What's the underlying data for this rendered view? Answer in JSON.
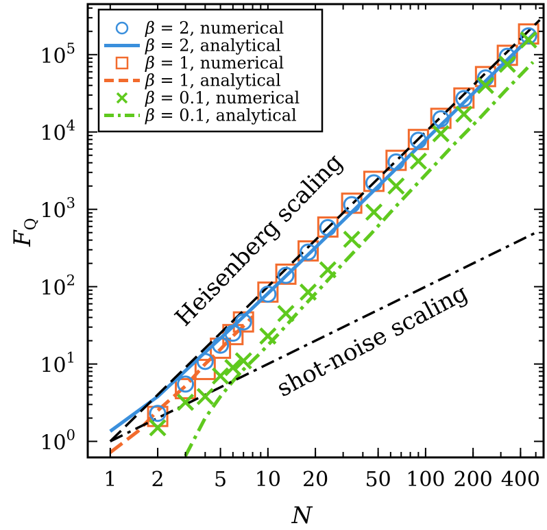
{
  "chart_data": {
    "type": "line",
    "xscale": "log",
    "yscale": "log",
    "xlabel": "N",
    "ylabel": "F_Q",
    "ylabel_main": "F",
    "ylabel_sub": "Q",
    "xlim": [
      0.72,
      560
    ],
    "ylim": [
      0.62,
      450000
    ],
    "x_ticks": [
      1,
      2,
      5,
      10,
      20,
      50,
      100,
      200,
      400
    ],
    "x_tick_labels": [
      "1",
      "2",
      "5",
      "10",
      "20",
      "50",
      "100",
      "200",
      "400"
    ],
    "y_ticks": [
      1,
      10,
      100,
      1000,
      10000,
      100000
    ],
    "y_tick_base": "10",
    "y_tick_exps": [
      "0",
      "1",
      "2",
      "3",
      "4",
      "5"
    ],
    "legend": {
      "position": "top-left",
      "entries": [
        {
          "symbol": "β",
          "eq": " = 2, ",
          "text": "numerical",
          "marker": "circle",
          "color": "#3a8fdc"
        },
        {
          "symbol": "β",
          "eq": " = 2, ",
          "text": "analytical",
          "marker": "solid-line",
          "color": "#3a8fdc"
        },
        {
          "symbol": "β",
          "eq": " = 1, ",
          "text": "numerical",
          "marker": "square",
          "color": "#f26b2d"
        },
        {
          "symbol": "β",
          "eq": " = 1, ",
          "text": "analytical",
          "marker": "dashed-line",
          "color": "#f26b2d"
        },
        {
          "symbol": "β",
          "eq": " = 0.1, ",
          "text": "numerical",
          "marker": "x",
          "color": "#5fc91e"
        },
        {
          "symbol": "β",
          "eq": " = 0.1, ",
          "text": "analytical",
          "marker": "dashdot-line",
          "color": "#5fc91e"
        }
      ]
    },
    "annotations": {
      "heisenberg": "Heisenberg scaling",
      "shot_noise": "shot-noise scaling"
    },
    "series": [
      {
        "name": "β = 2, numerical",
        "style": "circle",
        "color": "#3a8fdc",
        "x": [
          2,
          3,
          4,
          5,
          6,
          7,
          10,
          13,
          18,
          24,
          34,
          47,
          65,
          90,
          125,
          175,
          240,
          330,
          450
        ],
        "y": [
          2.3,
          5.5,
          10.8,
          17.5,
          25,
          35,
          80,
          140,
          280,
          580,
          1150,
          2200,
          4100,
          7800,
          14800,
          27000,
          50000,
          95000,
          175000
        ]
      },
      {
        "name": "β = 2, analytical",
        "style": "solid",
        "color": "#3a8fdc",
        "x": [
          1,
          2,
          3,
          4,
          5,
          7,
          10,
          15,
          20,
          30,
          50,
          100,
          200,
          300,
          500
        ],
        "y": [
          1.35,
          3.8,
          8.2,
          14.2,
          21.5,
          41,
          82,
          182,
          320,
          715,
          1980,
          7900,
          31500,
          71000,
          197000
        ]
      },
      {
        "name": "β = 1, numerical",
        "style": "square",
        "color": "#f26b2d",
        "x": [
          2,
          3,
          4,
          5,
          6,
          7,
          10,
          13,
          18,
          24,
          34,
          47,
          65,
          90,
          125,
          175,
          240,
          330,
          450
        ],
        "y": [
          2.1,
          4.8,
          8.5,
          16,
          24,
          35,
          85,
          145,
          290,
          590,
          1200,
          2300,
          4300,
          8000,
          15000,
          27500,
          52000,
          98000,
          185000
        ]
      },
      {
        "name": "β = 1, analytical",
        "style": "dashed",
        "color": "#f26b2d",
        "x": [
          1,
          1.5,
          2,
          3,
          4,
          5,
          6,
          7,
          8
        ],
        "y": [
          0.72,
          1.35,
          2.5,
          5.2,
          10,
          15.5,
          23,
          31,
          41
        ]
      },
      {
        "name": "β = 0.1, numerical",
        "style": "x",
        "color": "#5fc91e",
        "x": [
          2,
          3,
          4,
          5,
          6,
          7,
          10,
          13,
          18,
          24,
          34,
          47,
          65,
          90,
          125,
          175,
          240,
          330,
          450
        ],
        "y": [
          1.5,
          3.2,
          3.8,
          7,
          9,
          11,
          23,
          45,
          85,
          165,
          410,
          920,
          2000,
          4200,
          9500,
          17000,
          40000,
          75000,
          155000
        ]
      },
      {
        "name": "β = 0.1, analytical",
        "style": "dashdot",
        "color": "#5fc91e",
        "x": [
          3,
          4,
          5,
          6,
          7,
          9,
          12,
          16,
          22,
          30,
          45,
          65,
          100,
          150,
          220,
          320,
          480
        ],
        "y": [
          0.65,
          2.0,
          3.8,
          6.0,
          8.5,
          14,
          26,
          50,
          100,
          200,
          480,
          1100,
          2800,
          6800,
          15000,
          34000,
          80000
        ]
      },
      {
        "name": "Heisenberg scaling",
        "style": "dashed",
        "color": "#000000",
        "x": [
          1,
          530
        ],
        "y": [
          1.0,
          280900
        ]
      },
      {
        "name": "shot-noise scaling",
        "style": "dashdot",
        "color": "#000000",
        "x": [
          1,
          500
        ],
        "y": [
          1.0,
          500
        ]
      }
    ]
  }
}
